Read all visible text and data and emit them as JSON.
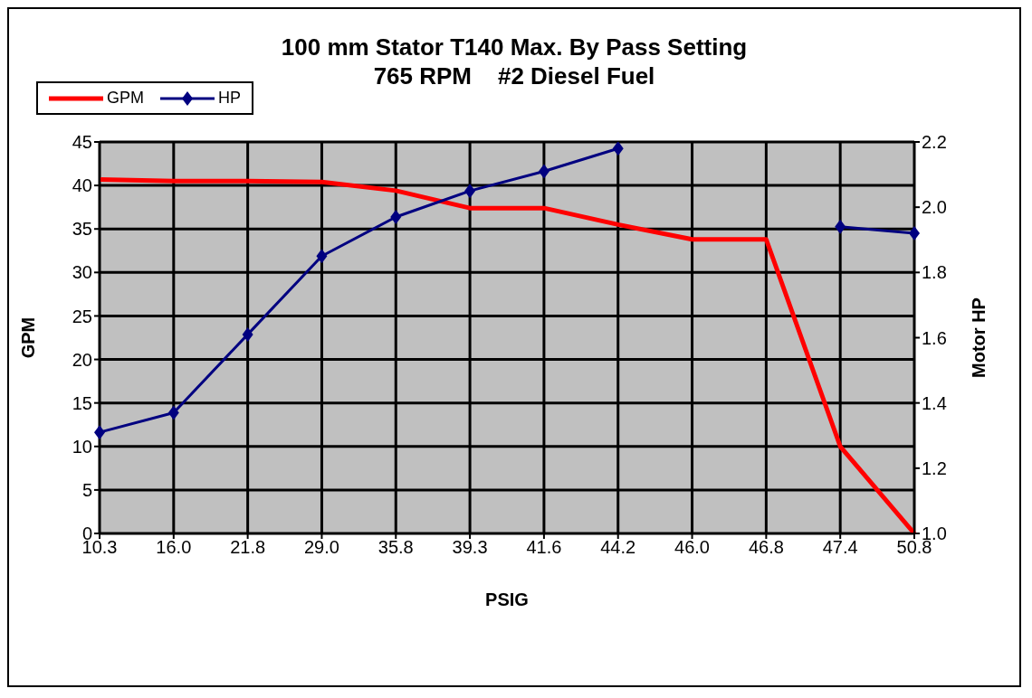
{
  "chart_data": {
    "type": "line",
    "title": "100 mm Stator T140 Max. By Pass Setting",
    "subtitle": "765 RPM    #2 Diesel Fuel",
    "xlabel": "PSIG",
    "ylabel": "GPM",
    "y2label": "Motor HP",
    "categories": [
      "10.3",
      "16.0",
      "21.8",
      "29.0",
      "35.8",
      "39.3",
      "41.6",
      "44.2",
      "46.0",
      "46.8",
      "47.4",
      "50.8"
    ],
    "series": [
      {
        "name": "GPM",
        "color": "#ff0000",
        "marker": "none",
        "values": [
          40.7,
          40.5,
          40.5,
          40.4,
          39.4,
          37.4,
          37.4,
          35.5,
          33.8,
          33.8,
          10,
          0
        ]
      },
      {
        "name": "HP",
        "color": "#000080",
        "marker": "diamond",
        "axis": "y2",
        "values": [
          1.31,
          1.37,
          1.61,
          1.85,
          1.97,
          2.05,
          2.11,
          2.18,
          null,
          null,
          1.94,
          1.92
        ]
      }
    ],
    "ylim": [
      0,
      45
    ],
    "yticks": [
      0,
      5,
      10,
      15,
      20,
      25,
      30,
      35,
      40,
      45
    ],
    "y2lim": [
      1.0,
      2.2
    ],
    "y2ticks": [
      {
        "value": 1,
        "label": "1.0"
      },
      1.2,
      1.4,
      1.6,
      1.8,
      {
        "value": 2,
        "label": "2.0"
      },
      2.2
    ],
    "grid": true,
    "legend": "top"
  }
}
